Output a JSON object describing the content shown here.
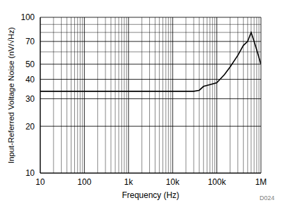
{
  "chart_data": {
    "type": "line",
    "log": true,
    "grid": true,
    "x_label": "Frequency (Hz)",
    "y_label": "Input-Referred Voltage Noise (nV/√Hz)",
    "annotation": "D024",
    "x": [
      10,
      100,
      1000,
      10000,
      30000,
      40000,
      50000,
      70000,
      100000,
      150000,
      200000,
      300000,
      400000,
      500000,
      600000,
      700000,
      800000,
      1000000
    ],
    "series": [
      {
        "name": "Noise",
        "color": "#000000",
        "values": [
          33.5,
          33.5,
          33.5,
          33.5,
          33.5,
          34,
          36,
          37,
          38,
          43,
          48,
          57,
          66,
          70,
          80,
          70,
          62,
          50
        ]
      }
    ],
    "xlim": [
      10,
      1000000
    ],
    "ylim": [
      10,
      100
    ],
    "xticks": [
      10,
      100,
      {
        "value": 1000,
        "label": "1k"
      },
      {
        "value": 10000,
        "label": "10k"
      },
      {
        "value": 100000,
        "label": "100k"
      },
      {
        "value": 1000000,
        "label": "1M"
      }
    ],
    "yticks": [
      10,
      20,
      30,
      40,
      50,
      70,
      100
    ]
  }
}
